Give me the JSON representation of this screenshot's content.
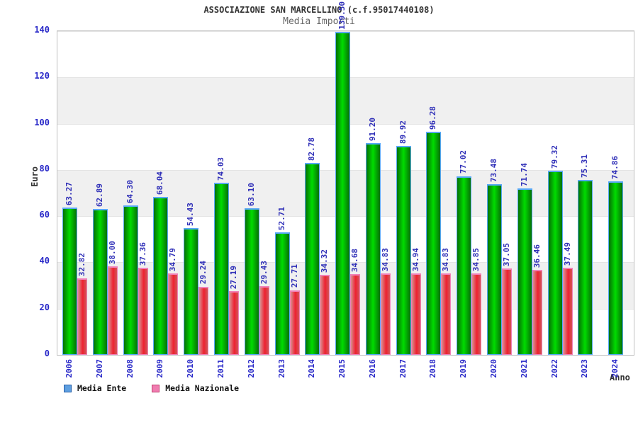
{
  "header": {
    "title": "ASSOCIAZIONE SAN MARCELLINO (c.f.95017440108)",
    "subtitle": "Media Importi"
  },
  "y_axis": {
    "label": "Euro",
    "ticks": [
      0,
      20,
      40,
      60,
      80,
      100,
      120,
      140
    ]
  },
  "x_axis": {
    "label": "Anno"
  },
  "legend": {
    "items": [
      {
        "label": "Media Ente",
        "swatch_color": "#5e9fe0",
        "swatch_border": "#2860a8"
      },
      {
        "label": "Media Nazionale",
        "swatch_color": "#f07cb0",
        "swatch_border": "#c04070"
      }
    ]
  },
  "colors": {
    "bar_green_dark": "#067006",
    "bar_green_bright": "#00dc00",
    "bar_green_border": "#58a8f8",
    "bar_red_dark": "#d89090",
    "bar_red_bright": "#ee2030",
    "bar_red_border": "#f080b8",
    "axis_text_blue": "#2828c8",
    "value_text_blue": "#3030b8",
    "band_gray": "#f0f0f0"
  },
  "chart_data": {
    "type": "bar",
    "title": "ASSOCIAZIONE SAN MARCELLINO (c.f.95017440108)",
    "subtitle": "Media Importi",
    "xlabel": "Anno",
    "ylabel": "Euro",
    "ylim": [
      0,
      140
    ],
    "grid": "alternating horizontal bands white/gray every 20 units",
    "legend_position": "bottom-left",
    "categories": [
      "2006",
      "2007",
      "2008",
      "2009",
      "2010",
      "2011",
      "2012",
      "2013",
      "2014",
      "2015",
      "2016",
      "2017",
      "2018",
      "2019",
      "2020",
      "2021",
      "2022",
      "2023",
      "2024"
    ],
    "series": [
      {
        "name": "Media Ente",
        "color": "green",
        "values": [
          63.27,
          62.89,
          64.3,
          68.04,
          54.43,
          74.03,
          63.1,
          52.71,
          82.78,
          139.5,
          91.2,
          89.92,
          96.28,
          77.02,
          73.48,
          71.74,
          79.32,
          75.31,
          74.86
        ]
      },
      {
        "name": "Media Nazionale",
        "color": "red",
        "values": [
          32.82,
          38.0,
          37.36,
          34.79,
          29.24,
          27.19,
          29.43,
          27.71,
          34.32,
          34.68,
          34.83,
          34.94,
          34.83,
          34.85,
          37.05,
          36.46,
          37.49,
          null,
          null
        ]
      }
    ]
  }
}
